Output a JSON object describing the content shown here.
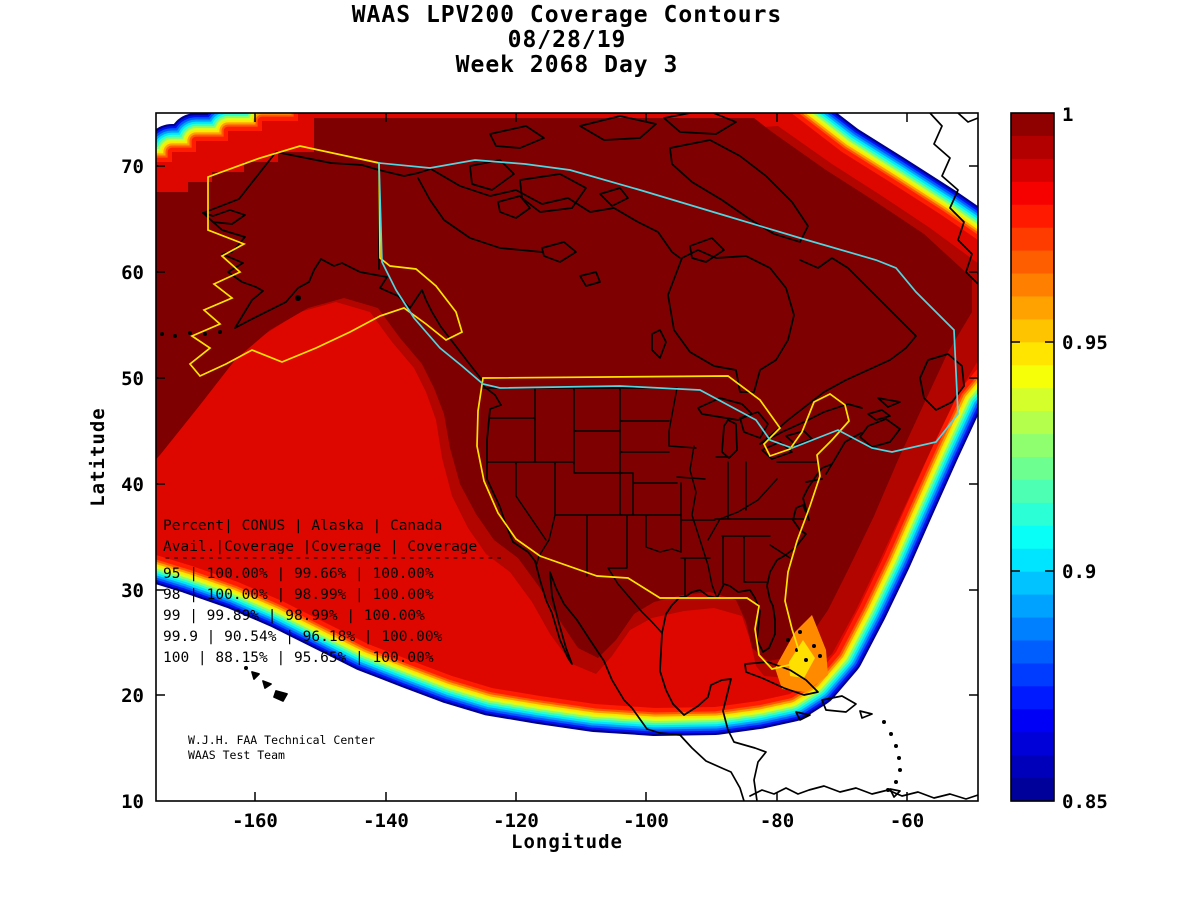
{
  "figure": {
    "title_lines": [
      "WAAS LPV200 Coverage Contours",
      "08/28/19",
      "Week 2068 Day 3"
    ],
    "xlabel": "Longitude",
    "ylabel": "Latitude",
    "credit_lines": [
      "W.J.H. FAA Technical Center",
      "WAAS Test Team"
    ]
  },
  "axes": {
    "xtick_labels": [
      "-160",
      "-140",
      "-120",
      "-100",
      "-80",
      "-60"
    ],
    "ytick_labels": [
      "70",
      "60",
      "50",
      "40",
      "30",
      "20",
      "10"
    ]
  },
  "colorbar": {
    "tick_labels": [
      "1",
      "0.95",
      "0.9",
      "0.85"
    ],
    "range": [
      0.85,
      1
    ],
    "colormap": "jet",
    "steps": 30,
    "jet_anchors": [
      {
        "at": 0.0,
        "color": "#00008C"
      },
      {
        "at": 0.125,
        "color": "#0000FF"
      },
      {
        "at": 0.375,
        "color": "#00FFFF"
      },
      {
        "at": 0.625,
        "color": "#FFFF00"
      },
      {
        "at": 0.875,
        "color": "#FF0000"
      },
      {
        "at": 1.0,
        "color": "#7E0000"
      }
    ]
  },
  "contour": {
    "fringe_colors": [
      "#00008C",
      "#0010F0",
      "#0058FF",
      "#00A0FF",
      "#00E8F8",
      "#30FFC8",
      "#88FF70",
      "#D8FF20",
      "#FFE800",
      "#FFA000",
      "#FF5800",
      "#FF1C00"
    ],
    "levels": {
      "outer": "#DE0700",
      "mid": "#B20500",
      "core": "#7E0000"
    },
    "accents": {
      "orange_wedge": "#FF8A00",
      "yellow_wedge": "#FFE000"
    },
    "boundary_colors": {
      "conus_alaska": "#FFE400",
      "canada": "#4FD6E0"
    },
    "coastline_color": "#000000"
  },
  "coverage_table": {
    "lines": [
      "Percent| CONUS    | Alaska  | Canada",
      " Avail.|Coverage  |Coverage | Coverage",
      "---------------------------------------",
      "  95   | 100.00%  | 99.66%  | 100.00%",
      "  98   | 100.00%  | 98.99%  | 100.00%",
      "  99   | 99.89%   | 98.99%  | 100.00%",
      "99.9   | 90.54%   | 96.18%  | 100.00%",
      " 100   | 88.15%   | 95.65%  | 100.00%"
    ],
    "columns": [
      "Percent Avail.",
      "CONUS Coverage",
      "Alaska Coverage",
      "Canada Coverage"
    ],
    "rows": [
      [
        "95",
        "100.00%",
        "99.66%",
        "100.00%"
      ],
      [
        "98",
        "100.00%",
        "98.99%",
        "100.00%"
      ],
      [
        "99",
        "99.89%",
        "98.99%",
        "100.00%"
      ],
      [
        "99.9",
        "90.54%",
        "96.18%",
        "100.00%"
      ],
      [
        "100",
        "88.15%",
        "95.65%",
        "100.00%"
      ]
    ]
  },
  "chart_data": {
    "type": "heatmap",
    "subtype": "filled-contour-geographic-map",
    "title": "WAAS LPV200 Coverage Contours",
    "subtitle_lines": [
      "08/28/19",
      "Week 2068 Day 3"
    ],
    "xlabel": "Longitude",
    "ylabel": "Latitude",
    "xlim": [
      -175,
      -49
    ],
    "ylim": [
      10,
      75
    ],
    "xticks": [
      -160,
      -140,
      -120,
      -100,
      -80,
      -60
    ],
    "yticks": [
      10,
      20,
      30,
      40,
      50,
      60,
      70
    ],
    "grid": false,
    "legend_position": "colorbar-right",
    "colorbar": {
      "range": [
        0.85,
        1.0
      ],
      "ticks": [
        1,
        0.95,
        0.9,
        0.85
      ],
      "colormap": "jet"
    },
    "contour_description": "LPV200 availability contours over North America; dark red core (availability 1.0) covering CONUS, Canada and Alaska, with jet-colormap fringe (red→orange→yellow→green→cyan→blue, 1.0→0.85) around the edges over the Pacific, Atlantic, Gulf of Mexico and Arctic.",
    "overlays": [
      "CONUS service volume boundary (yellow)",
      "Alaska service volume boundary (yellow)",
      "Canada service volume boundary (cyan)",
      "Coastlines and US state borders (black)"
    ],
    "annotations": [
      "W.J.H. FAA Technical Center",
      "WAAS Test Team"
    ],
    "table": {
      "columns": [
        "Percent Avail.",
        "CONUS Coverage",
        "Alaska Coverage",
        "Canada Coverage"
      ],
      "rows": [
        [
          95,
          "100.00%",
          "99.66%",
          "100.00%"
        ],
        [
          98,
          "100.00%",
          "98.99%",
          "100.00%"
        ],
        [
          99,
          "99.89%",
          "98.99%",
          "100.00%"
        ],
        [
          99.9,
          "90.54%",
          "96.18%",
          "100.00%"
        ],
        [
          100,
          "88.15%",
          "95.65%",
          "100.00%"
        ]
      ]
    }
  }
}
